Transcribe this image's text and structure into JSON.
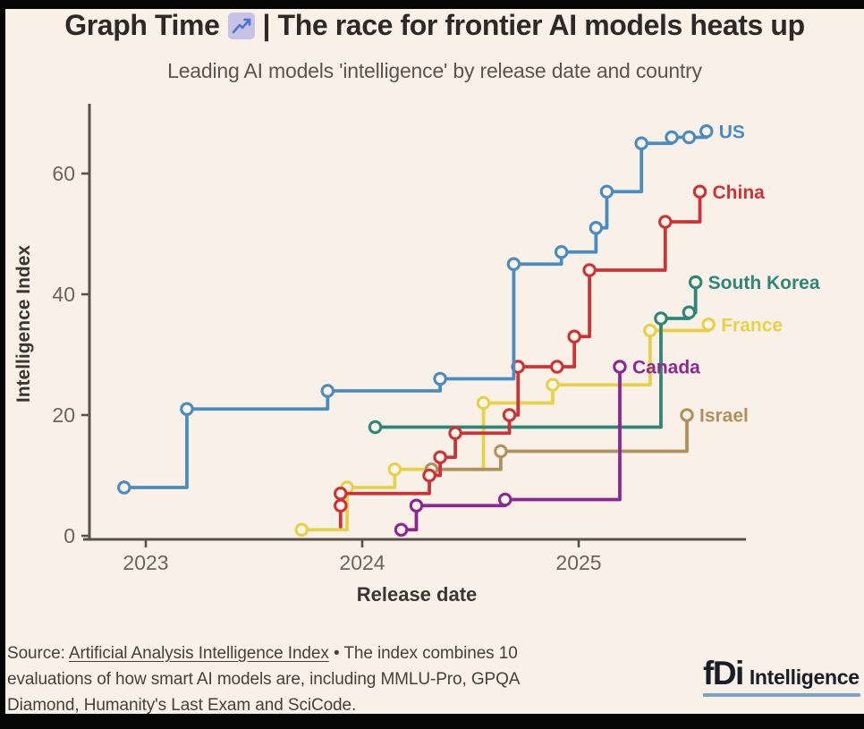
{
  "header": {
    "title_prefix": "Graph Time",
    "emoji": "chart-increasing",
    "title_suffix": "| The race for frontier AI models heats up",
    "subtitle": "Leading AI models 'intelligence' by release date and country"
  },
  "chart_data": {
    "type": "line",
    "line_style": "step-after",
    "title": "Graph Time 📈 | The race for frontier AI models heats up",
    "subtitle": "Leading AI models 'intelligence' by release date and country",
    "xlabel": "Release date",
    "ylabel": "Intelligence Index",
    "x_unit": "release year (decimal)",
    "x_ticks": [
      2023,
      2024,
      2025
    ],
    "y_ticks": [
      0,
      20,
      40,
      60
    ],
    "xlim": [
      2022.71,
      2025.77
    ],
    "ylim": [
      0,
      72
    ],
    "grid": false,
    "legend": "end-of-line country labels",
    "series": [
      {
        "name": "France",
        "color": "#e7d14a",
        "points": [
          [
            2023.72,
            1
          ],
          [
            2023.93,
            8
          ],
          [
            2024.15,
            11
          ],
          [
            2024.56,
            22
          ],
          [
            2024.88,
            25
          ],
          [
            2025.33,
            34
          ],
          [
            2025.6,
            35
          ]
        ]
      },
      {
        "name": "Israel",
        "color": "#b28f5e",
        "points": [
          [
            2024.32,
            11
          ],
          [
            2024.64,
            14
          ],
          [
            2025.5,
            20
          ]
        ]
      },
      {
        "name": "South Korea",
        "color": "#2f8678",
        "points": [
          [
            2024.06,
            18
          ],
          [
            2025.38,
            36
          ],
          [
            2025.51,
            37
          ],
          [
            2025.54,
            42
          ]
        ]
      },
      {
        "name": "China",
        "color": "#cc3336",
        "line_start": [
          2023.9,
          1.5
        ],
        "points": [
          [
            2023.9,
            5
          ],
          [
            2023.9,
            7
          ],
          [
            2024.31,
            10
          ],
          [
            2024.36,
            13
          ],
          [
            2024.43,
            17
          ],
          [
            2024.68,
            20
          ],
          [
            2024.72,
            28
          ],
          [
            2024.9,
            28
          ],
          [
            2024.98,
            33
          ],
          [
            2025.05,
            44
          ],
          [
            2025.4,
            52
          ],
          [
            2025.56,
            57
          ]
        ]
      },
      {
        "name": "Canada",
        "color": "#8d2791",
        "points": [
          [
            2024.18,
            1
          ],
          [
            2024.25,
            5
          ],
          [
            2024.66,
            6
          ],
          [
            2025.19,
            28
          ]
        ]
      },
      {
        "name": "US",
        "color": "#4a8cc2",
        "points": [
          [
            2022.9,
            8
          ],
          [
            2023.19,
            21
          ],
          [
            2023.84,
            24
          ],
          [
            2024.36,
            26
          ],
          [
            2024.7,
            45
          ],
          [
            2024.92,
            47
          ],
          [
            2025.08,
            51
          ],
          [
            2025.13,
            57
          ],
          [
            2025.29,
            65
          ],
          [
            2025.43,
            66
          ],
          [
            2025.51,
            66
          ],
          [
            2025.59,
            67
          ]
        ]
      }
    ]
  },
  "footer": {
    "source_prefix": "Source: ",
    "source_link": "Artificial Analysis Intelligence Index",
    "source_rest": " • The index combines 10 evaluations of how smart AI models are, including MMLU-Pro, GPQA Diamond, Humanity's Last Exam and SciCode.",
    "logo_fdi": "fDi",
    "logo_intelligence": "Intelligence"
  },
  "colors": {
    "background": "#f9f1e7",
    "frame": "#060606",
    "axis": "#57524b",
    "tick_label": "#6b645c",
    "axis_title": "#3a3631",
    "marker_fill": "#fbf4ea",
    "title_text": "#2d2925",
    "subtitle_text": "#5a544d",
    "emoji_bg": "#c8c3e6",
    "emoji_line": "#4f74cf",
    "logo_underline": "#7aa2c2"
  }
}
